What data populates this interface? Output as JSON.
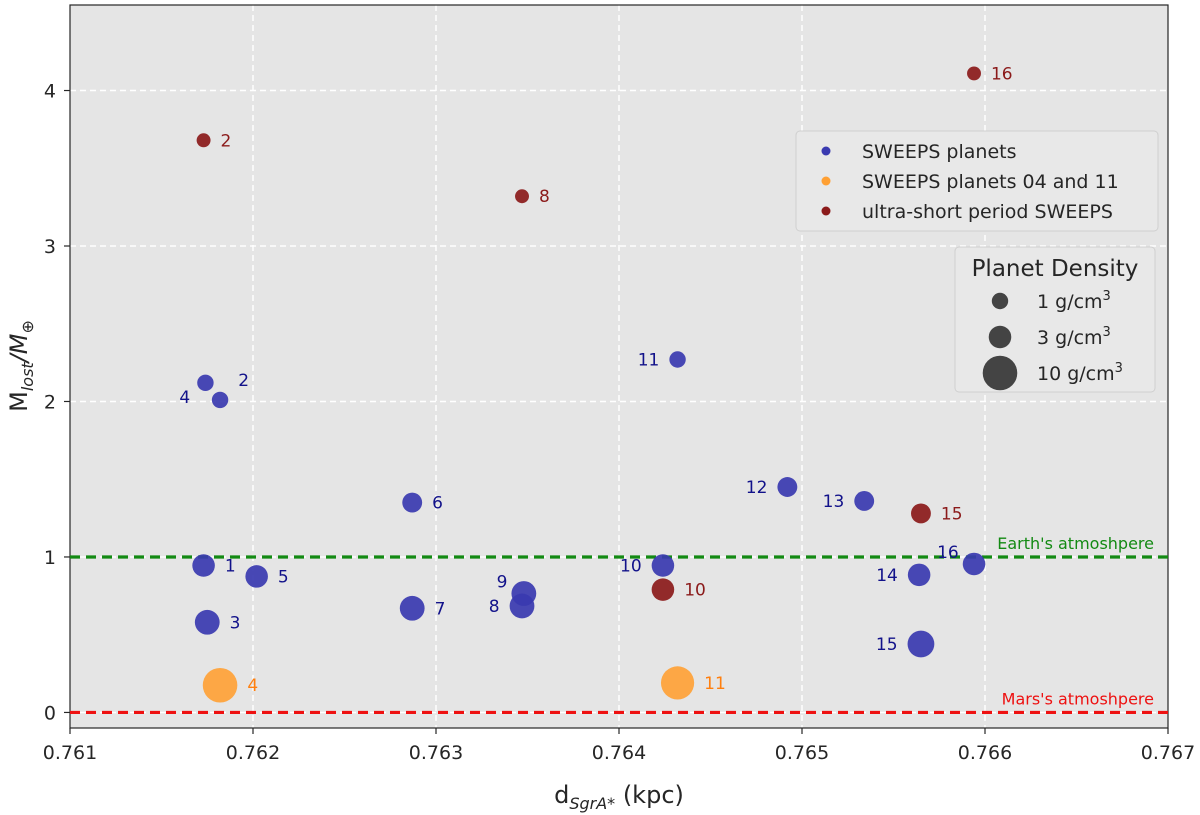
{
  "chart_data": {
    "type": "scatter",
    "xlabel": {
      "main": "d",
      "sub": "SgrA*",
      "unit": "(kpc)"
    },
    "ylabel": {
      "main": "M",
      "sub": "lost",
      "slash": "/M",
      "sub2": "⊕"
    },
    "xlim": [
      0.761,
      0.767
    ],
    "ylim": [
      -0.1,
      4.55
    ],
    "x_ticks": [
      0.761,
      0.762,
      0.763,
      0.764,
      0.765,
      0.766,
      0.767
    ],
    "x_tick_labels": [
      "0.761",
      "0.762",
      "0.763",
      "0.764",
      "0.765",
      "0.766",
      "0.767"
    ],
    "y_ticks": [
      0,
      1,
      2,
      3,
      4
    ],
    "y_tick_labels": [
      "0",
      "1",
      "2",
      "3",
      "4"
    ],
    "grid": true,
    "colors": {
      "background": "#e5e5e5",
      "sweeps": "#3a3ab0",
      "special": "#ffa033",
      "usp": "#8b1a1a",
      "earth_line": "#138a13",
      "mars_line": "#ee1111"
    },
    "series": [
      {
        "name": "SWEEPS planets",
        "color_key": "sweeps",
        "points": [
          {
            "label": "1",
            "x": 0.76173,
            "y": 0.945,
            "density": 3,
            "label_pos": "right"
          },
          {
            "label": "2",
            "x": 0.76182,
            "y": 2.01,
            "density": 1,
            "label_pos": "upright"
          },
          {
            "label": "3",
            "x": 0.76175,
            "y": 0.58,
            "density": 4,
            "label_pos": "right"
          },
          {
            "label": "4",
            "x": 0.76174,
            "y": 2.12,
            "density": 1,
            "label_pos": "downleft"
          },
          {
            "label": "5",
            "x": 0.76202,
            "y": 0.875,
            "density": 3,
            "label_pos": "right"
          },
          {
            "label": "6",
            "x": 0.76287,
            "y": 1.35,
            "density": 2,
            "label_pos": "right"
          },
          {
            "label": "7",
            "x": 0.76287,
            "y": 0.67,
            "density": 4,
            "label_pos": "right"
          },
          {
            "label": "8",
            "x": 0.76347,
            "y": 0.685,
            "density": 4,
            "label_pos": "left"
          },
          {
            "label": "9",
            "x": 0.76348,
            "y": 0.765,
            "density": 4,
            "label_pos": "upleft"
          },
          {
            "label": "10",
            "x": 0.76424,
            "y": 0.945,
            "density": 3,
            "label_pos": "left"
          },
          {
            "label": "11",
            "x": 0.76432,
            "y": 2.27,
            "density": 1,
            "label_pos": "left"
          },
          {
            "label": "12",
            "x": 0.76492,
            "y": 1.45,
            "density": 2,
            "label_pos": "left"
          },
          {
            "label": "13",
            "x": 0.76534,
            "y": 1.36,
            "density": 2,
            "label_pos": "left"
          },
          {
            "label": "14",
            "x": 0.76564,
            "y": 0.885,
            "density": 3,
            "label_pos": "left"
          },
          {
            "label": "15",
            "x": 0.76565,
            "y": 0.44,
            "density": 5,
            "label_pos": "left"
          },
          {
            "label": "16",
            "x": 0.76594,
            "y": 0.955,
            "density": 3,
            "label_pos": "upleft"
          }
        ]
      },
      {
        "name": "SWEEPS planets 04 and 11",
        "color_key": "special",
        "points": [
          {
            "label": "4",
            "x": 0.76182,
            "y": 0.175,
            "density": 10,
            "label_pos": "right"
          },
          {
            "label": "11",
            "x": 0.76432,
            "y": 0.19,
            "density": 9,
            "label_pos": "right"
          }
        ]
      },
      {
        "name": "ultra-short period SWEEPS",
        "color_key": "usp",
        "points": [
          {
            "label": "2",
            "x": 0.76173,
            "y": 3.68,
            "density": 0.5,
            "label_pos": "right"
          },
          {
            "label": "8",
            "x": 0.76347,
            "y": 3.32,
            "density": 0.5,
            "label_pos": "right"
          },
          {
            "label": "10",
            "x": 0.76424,
            "y": 0.79,
            "density": 3,
            "label_pos": "right"
          },
          {
            "label": "15",
            "x": 0.76565,
            "y": 1.28,
            "density": 2,
            "label_pos": "right"
          },
          {
            "label": "16",
            "x": 0.76594,
            "y": 4.11,
            "density": 0.5,
            "label_pos": "right"
          }
        ]
      }
    ],
    "hlines": [
      {
        "y": 1.0,
        "label": "Earth's atmoshpere",
        "color_key": "earth_line"
      },
      {
        "y": 0.0,
        "label": "Mars's atmoshpere",
        "color_key": "mars_line"
      }
    ],
    "legend": {
      "placement": "upper-right",
      "entries": [
        "SWEEPS planets",
        "SWEEPS planets 04 and 11",
        "ultra-short period SWEEPS"
      ]
    },
    "size_legend": {
      "title": "Planet Density",
      "placement": "right",
      "entries": [
        {
          "value": 1,
          "label": "1 g/cm",
          "sup": "3"
        },
        {
          "value": 3,
          "label": "3 g/cm",
          "sup": "3"
        },
        {
          "value": 10,
          "label": "10 g/cm",
          "sup": "3"
        }
      ]
    }
  }
}
